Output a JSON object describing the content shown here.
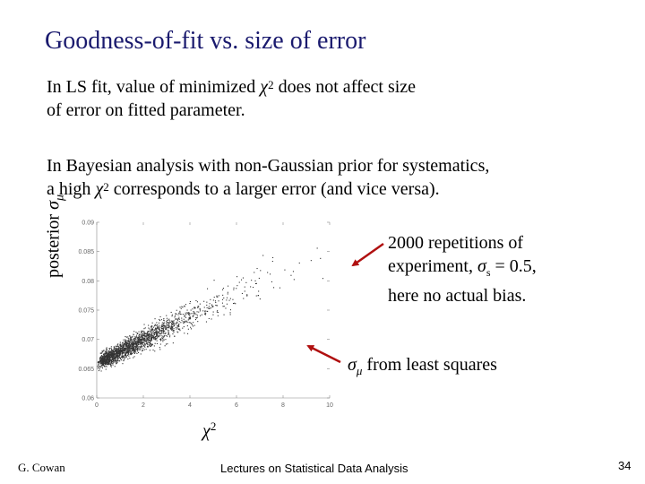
{
  "slide": {
    "title": "Goodness-of-fit vs. size of error",
    "para1": {
      "line1_pre": "In LS fit, value of minimized ",
      "chi": "χ",
      "sup": "2",
      "line1_post": " does not affect size",
      "line2": "of error on fitted parameter."
    },
    "para2": {
      "line1": "In Bayesian analysis with non-Gaussian prior for systematics,",
      "line2_pre": "a high ",
      "chi": "χ",
      "sup": "2",
      "line2_post": " corresponds to a larger error (and vice versa)."
    },
    "annotation1": {
      "line1": "2000 repetitions of",
      "line2_pre": "experiment, ",
      "sigma": "σ",
      "sub": "s",
      "line2_post": " = 0.5,",
      "line3": "here no actual bias."
    },
    "annotation2": {
      "sigma": "σ",
      "mu": "μ",
      "text": " from least squares"
    },
    "ylabel": {
      "text": "posterior ",
      "sigma": "σ",
      "mu": "μ"
    },
    "xlabel": {
      "chi": "χ",
      "sup": "2"
    },
    "footer": {
      "author": "G. Cowan",
      "course": "Lectures on Statistical Data Analysis",
      "page": "34"
    }
  },
  "chart_data": {
    "type": "scatter",
    "n_points": 2000,
    "x_ticks": [
      "0",
      "2",
      "4",
      "6",
      "8",
      "10"
    ],
    "y_ticks": [
      "0.06",
      "0.065",
      "0.07",
      "0.075",
      "0.08",
      "0.085",
      "0.09"
    ],
    "xlim": [
      0,
      10
    ],
    "ylim": [
      0.06,
      0.09
    ],
    "least_squares_sigma_mu": 0.0665,
    "trend": {
      "slope": 0.002,
      "intercept": 0.066
    },
    "colors": {
      "points": "#333333",
      "axis": "#888888",
      "arrow": "#b01010"
    }
  }
}
